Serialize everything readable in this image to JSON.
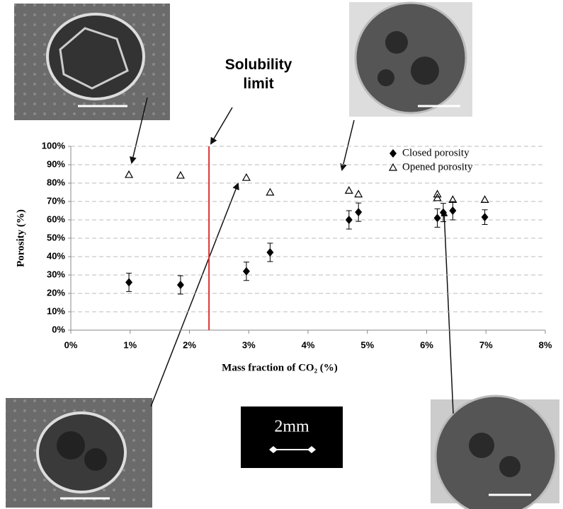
{
  "chart_data": {
    "type": "scatter",
    "xlabel": "Mass fraction of CO₂ (%)",
    "ylabel": "Porosity (%)",
    "xlim": [
      0,
      8
    ],
    "xticks": [
      {
        "value": 0,
        "label": "0%"
      },
      {
        "value": 1,
        "label": "1%"
      },
      {
        "value": 2,
        "label": "2%"
      },
      {
        "value": 3,
        "label": "3%"
      },
      {
        "value": 4,
        "label": "4%"
      },
      {
        "value": 5,
        "label": "5%"
      },
      {
        "value": 6,
        "label": "6%"
      },
      {
        "value": 7,
        "label": "7%"
      },
      {
        "value": 8,
        "label": "8%"
      }
    ],
    "ylim": [
      0,
      100
    ],
    "yticks": [
      {
        "value": 0,
        "label": "0%"
      },
      {
        "value": 10,
        "label": "10%"
      },
      {
        "value": 20,
        "label": "20%"
      },
      {
        "value": 30,
        "label": "30%"
      },
      {
        "value": 40,
        "label": "40%"
      },
      {
        "value": 50,
        "label": "50%"
      },
      {
        "value": 60,
        "label": "60%"
      },
      {
        "value": 70,
        "label": "70%"
      },
      {
        "value": 80,
        "label": "80%"
      },
      {
        "value": 90,
        "label": "90%"
      },
      {
        "value": 100,
        "label": "100%"
      }
    ],
    "grid": true,
    "legend": "upper right",
    "series": [
      {
        "name": "Closed porosity",
        "color": "#000000",
        "marker": "diamond",
        "x": [
          0.98,
          1.85,
          2.96,
          3.36,
          4.69,
          4.85,
          6.18,
          6.28,
          6.44,
          6.98
        ],
        "values": [
          26,
          24.6,
          32,
          42.3,
          60,
          64.2,
          61,
          64,
          65,
          61.5
        ],
        "errors": [
          5,
          5,
          5,
          5,
          5,
          5,
          5,
          5,
          5,
          4
        ]
      },
      {
        "name": "Opened porosity",
        "color": "#000000",
        "marker": "triangle",
        "x": [
          0.98,
          1.85,
          2.96,
          3.36,
          4.69,
          4.85,
          6.18,
          6.18,
          6.44,
          6.98
        ],
        "values": [
          84.6,
          84.2,
          83,
          75,
          76,
          74,
          74,
          72,
          71,
          71
        ]
      }
    ],
    "annotations": [
      {
        "text": "Solubility limit",
        "x": 2.33,
        "color": "#e03030"
      }
    ],
    "scale_bar": "2mm"
  }
}
